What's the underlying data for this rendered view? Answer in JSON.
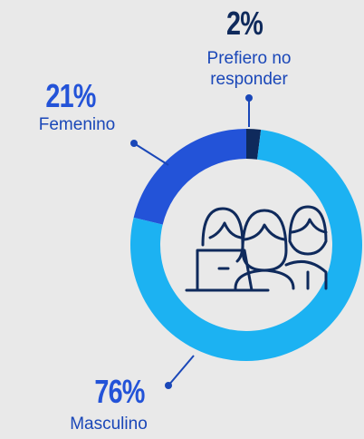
{
  "chart_data": {
    "type": "donut",
    "categories": [
      "Femenino",
      "Prefiero no responder",
      "Masculino"
    ],
    "values": [
      21,
      2,
      76
    ],
    "value_labels": [
      "21%",
      "2%",
      "76%"
    ],
    "colors": [
      "#2353d8",
      "#0f2a5c",
      "#1cb2f2"
    ]
  }
}
